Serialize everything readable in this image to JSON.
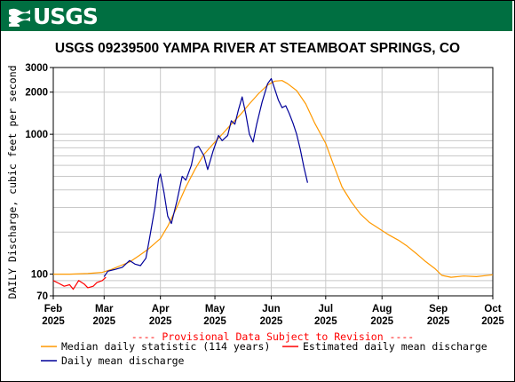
{
  "header": {
    "logo_text": "USGS",
    "brand_color": "#006f41"
  },
  "chart_data": {
    "type": "line",
    "title": "USGS 09239500 YAMPA RIVER AT STEAMBOAT SPRINGS, CO",
    "ylabel": "DAILY Discharge, cubic feet per second",
    "yscale": "log",
    "ylim": [
      70,
      3000
    ],
    "xlim": [
      "2025-02-01",
      "2025-10-01"
    ],
    "y_ticks": [
      {
        "value": 70,
        "label": "70"
      },
      {
        "value": 100,
        "label": "100"
      },
      {
        "value": 1000,
        "label": "1000"
      },
      {
        "value": 2000,
        "label": "2000"
      },
      {
        "value": 3000,
        "label": "3000"
      }
    ],
    "y_gridlines": [
      70,
      80,
      90,
      100,
      200,
      300,
      400,
      500,
      600,
      700,
      800,
      900,
      1000,
      2000,
      3000
    ],
    "x_ticks": [
      {
        "date": "2025-02-01",
        "month": "Feb",
        "year": "2025"
      },
      {
        "date": "2025-03-01",
        "month": "Mar",
        "year": "2025"
      },
      {
        "date": "2025-04-01",
        "month": "Apr",
        "year": "2025"
      },
      {
        "date": "2025-05-01",
        "month": "May",
        "year": "2025"
      },
      {
        "date": "2025-06-01",
        "month": "Jun",
        "year": "2025"
      },
      {
        "date": "2025-07-01",
        "month": "Jul",
        "year": "2025"
      },
      {
        "date": "2025-08-01",
        "month": "Aug",
        "year": "2025"
      },
      {
        "date": "2025-09-01",
        "month": "Sep",
        "year": "2025"
      },
      {
        "date": "2025-10-01",
        "month": "Oct",
        "year": "2025"
      }
    ],
    "grid": true,
    "provisional_note": "---- Provisional Data Subject to Revision ----",
    "series": [
      {
        "name": "Median daily statistic (114 years)",
        "color": "#ff9900",
        "points": [
          [
            "2025-02-01",
            100
          ],
          [
            "2025-02-10",
            100
          ],
          [
            "2025-02-20",
            101
          ],
          [
            "2025-02-28",
            103
          ],
          [
            "2025-03-05",
            108
          ],
          [
            "2025-03-10",
            115
          ],
          [
            "2025-03-15",
            122
          ],
          [
            "2025-03-20",
            135
          ],
          [
            "2025-03-25",
            150
          ],
          [
            "2025-04-01",
            180
          ],
          [
            "2025-04-05",
            220
          ],
          [
            "2025-04-10",
            300
          ],
          [
            "2025-04-15",
            420
          ],
          [
            "2025-04-20",
            560
          ],
          [
            "2025-04-25",
            720
          ],
          [
            "2025-05-01",
            880
          ],
          [
            "2025-05-05",
            1000
          ],
          [
            "2025-05-10",
            1180
          ],
          [
            "2025-05-15",
            1380
          ],
          [
            "2025-05-20",
            1650
          ],
          [
            "2025-05-25",
            1950
          ],
          [
            "2025-05-30",
            2250
          ],
          [
            "2025-06-03",
            2400
          ],
          [
            "2025-06-07",
            2420
          ],
          [
            "2025-06-10",
            2300
          ],
          [
            "2025-06-15",
            2050
          ],
          [
            "2025-06-20",
            1650
          ],
          [
            "2025-06-25",
            1200
          ],
          [
            "2025-07-01",
            860
          ],
          [
            "2025-07-05",
            620
          ],
          [
            "2025-07-10",
            420
          ],
          [
            "2025-07-15",
            330
          ],
          [
            "2025-07-20",
            270
          ],
          [
            "2025-07-25",
            235
          ],
          [
            "2025-08-01",
            205
          ],
          [
            "2025-08-05",
            190
          ],
          [
            "2025-08-10",
            175
          ],
          [
            "2025-08-15",
            158
          ],
          [
            "2025-08-20",
            140
          ],
          [
            "2025-08-25",
            123
          ],
          [
            "2025-08-30",
            110
          ],
          [
            "2025-09-03",
            98
          ],
          [
            "2025-09-08",
            95
          ],
          [
            "2025-09-15",
            97
          ],
          [
            "2025-09-22",
            96
          ],
          [
            "2025-10-01",
            99
          ]
        ]
      },
      {
        "name": "Estimated daily mean discharge",
        "color": "#ff0000",
        "points": [
          [
            "2025-02-01",
            90
          ],
          [
            "2025-02-04",
            86
          ],
          [
            "2025-02-07",
            82
          ],
          [
            "2025-02-10",
            84
          ],
          [
            "2025-02-12",
            78
          ],
          [
            "2025-02-15",
            90
          ],
          [
            "2025-02-18",
            85
          ],
          [
            "2025-02-20",
            80
          ],
          [
            "2025-02-23",
            82
          ],
          [
            "2025-02-25",
            87
          ],
          [
            "2025-02-28",
            90
          ],
          [
            "2025-03-02",
            95
          ]
        ]
      },
      {
        "name": "Daily mean discharge",
        "color": "#000099",
        "points": [
          [
            "2025-03-01",
            96
          ],
          [
            "2025-03-03",
            105
          ],
          [
            "2025-03-07",
            108
          ],
          [
            "2025-03-11",
            112
          ],
          [
            "2025-03-15",
            125
          ],
          [
            "2025-03-18",
            118
          ],
          [
            "2025-03-21",
            115
          ],
          [
            "2025-03-24",
            130
          ],
          [
            "2025-03-26",
            180
          ],
          [
            "2025-03-29",
            300
          ],
          [
            "2025-03-31",
            480
          ],
          [
            "2025-04-01",
            520
          ],
          [
            "2025-04-03",
            380
          ],
          [
            "2025-04-05",
            260
          ],
          [
            "2025-04-07",
            230
          ],
          [
            "2025-04-10",
            330
          ],
          [
            "2025-04-13",
            500
          ],
          [
            "2025-04-15",
            470
          ],
          [
            "2025-04-18",
            600
          ],
          [
            "2025-04-20",
            800
          ],
          [
            "2025-04-22",
            820
          ],
          [
            "2025-04-25",
            700
          ],
          [
            "2025-04-27",
            560
          ],
          [
            "2025-04-30",
            760
          ],
          [
            "2025-05-03",
            980
          ],
          [
            "2025-05-05",
            900
          ],
          [
            "2025-05-08",
            980
          ],
          [
            "2025-05-10",
            1250
          ],
          [
            "2025-05-12",
            1180
          ],
          [
            "2025-05-14",
            1500
          ],
          [
            "2025-05-16",
            1850
          ],
          [
            "2025-05-18",
            1400
          ],
          [
            "2025-05-20",
            1000
          ],
          [
            "2025-05-22",
            880
          ],
          [
            "2025-05-24",
            1180
          ],
          [
            "2025-05-27",
            1700
          ],
          [
            "2025-05-30",
            2300
          ],
          [
            "2025-06-01",
            2500
          ],
          [
            "2025-06-03",
            2100
          ],
          [
            "2025-06-05",
            1750
          ],
          [
            "2025-06-07",
            1550
          ],
          [
            "2025-06-09",
            1600
          ],
          [
            "2025-06-11",
            1400
          ],
          [
            "2025-06-13",
            1200
          ],
          [
            "2025-06-15",
            1000
          ],
          [
            "2025-06-17",
            780
          ],
          [
            "2025-06-19",
            580
          ],
          [
            "2025-06-21",
            450
          ]
        ]
      }
    ]
  }
}
